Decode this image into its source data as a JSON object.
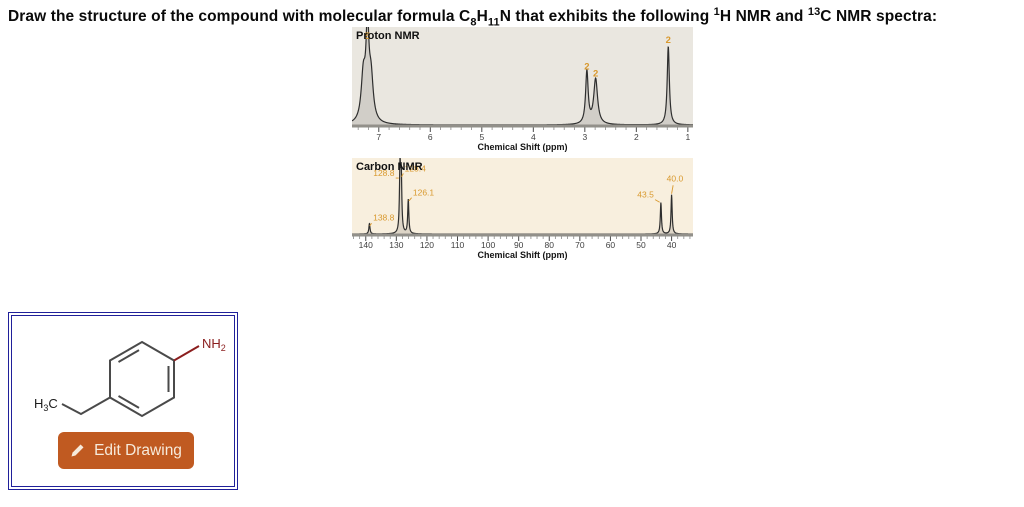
{
  "title": {
    "p1": "Draw the structure of the compound with molecular formula C",
    "s1": "8",
    "p2": "H",
    "s2": "11",
    "p3": "N that exhibits the following ",
    "sup1": "1",
    "p4": "H NMR and ",
    "sup2": "13",
    "p5": "C NMR spectra:"
  },
  "colors": {
    "proton_bg": "#eae7e0",
    "carbon_bg": "#f8efde",
    "curve": "#2e2e2e",
    "baseline": "#92908a",
    "tick": "#4a4a4a",
    "tick_label": "#3f3f3f",
    "annotation_orange": "#d9992e",
    "bond": "#4a4a4a",
    "amine_red": "#8b1e1e",
    "button_bg": "#c05a21",
    "button_text": "#f6eadb",
    "panel_border": "#20209a"
  },
  "chart_data": [
    {
      "type": "line",
      "name": "proton-nmr",
      "title": "Proton NMR",
      "xlabel": "Chemical Shift (ppm)",
      "x_domain": [
        7.52,
        0.9
      ],
      "x_axis": {
        "ticks": [
          7,
          6,
          5,
          4,
          3,
          2,
          1
        ],
        "minor_step": 0.2,
        "reversed": true
      },
      "peaks": [
        {
          "ppm": 7.3,
          "height": 0.52,
          "width": 0.05
        },
        {
          "ppm": 7.22,
          "height": 1.0,
          "width": 0.035
        },
        {
          "ppm": 7.15,
          "height": 0.48,
          "width": 0.05
        },
        {
          "ppm": 2.96,
          "height": 0.6,
          "width": 0.03
        },
        {
          "ppm": 2.79,
          "height": 0.52,
          "width": 0.045
        },
        {
          "ppm": 1.38,
          "height": 0.9,
          "width": 0.025
        }
      ],
      "integrations": [
        {
          "text": "5",
          "ppm": 7.22
        },
        {
          "text": "2",
          "ppm": 2.96
        },
        {
          "text": "2",
          "ppm": 2.79
        },
        {
          "text": "2",
          "ppm": 1.38
        }
      ],
      "annotations": [
        {
          "text": "5",
          "tx": 7.22,
          "ty": 1.0,
          "anchor": "middle",
          "bold": true
        },
        {
          "text": "2",
          "tx": 2.96,
          "ty": 0.65,
          "anchor": "middle",
          "bold": true
        },
        {
          "text": "2",
          "tx": 2.79,
          "ty": 0.57,
          "anchor": "middle",
          "bold": true
        },
        {
          "text": "2",
          "tx": 1.38,
          "ty": 0.95,
          "anchor": "middle",
          "bold": true
        }
      ]
    },
    {
      "type": "line",
      "name": "carbon-nmr",
      "title": "Carbon NMR",
      "xlabel": "Chemical Shift (ppm)",
      "x_domain": [
        144.5,
        33.0
      ],
      "x_axis": {
        "ticks": [
          140,
          130,
          120,
          110,
          100,
          90,
          80,
          70,
          60,
          50,
          40
        ],
        "minor_step": 2,
        "reversed": true
      },
      "peaks": [
        {
          "ppm": 138.8,
          "height": 0.16,
          "width": 0.22
        },
        {
          "ppm": 128.8,
          "height": 0.97,
          "width": 0.22
        },
        {
          "ppm": 128.4,
          "height": 0.86,
          "width": 0.22
        },
        {
          "ppm": 126.1,
          "height": 0.52,
          "width": 0.22
        },
        {
          "ppm": 43.5,
          "height": 0.48,
          "width": 0.22
        },
        {
          "ppm": 40.0,
          "height": 0.6,
          "width": 0.22
        }
      ],
      "shift_labels": [
        "138.8",
        "128.8",
        "128.4",
        "126.1",
        "43.5",
        "40.0"
      ],
      "annotations": [
        {
          "text": "138.8",
          "tx": 137.6,
          "ty": 0.22,
          "anchor": "start",
          "leader": [
            138.1,
            0.18,
            138.7,
            0.14
          ]
        },
        {
          "text": "128.8",
          "tx": 130.6,
          "ty": 0.9,
          "anchor": "end",
          "leader": [
            130.2,
            0.87,
            129.2,
            0.87
          ]
        },
        {
          "text": "128.4",
          "tx": 127.3,
          "ty": 0.97,
          "anchor": "start",
          "leader": [
            127.7,
            0.94,
            128.3,
            0.89
          ]
        },
        {
          "text": "126.1",
          "tx": 124.6,
          "ty": 0.6,
          "anchor": "start",
          "leader": [
            125.0,
            0.57,
            125.9,
            0.52
          ]
        },
        {
          "text": "43.5",
          "tx": 45.8,
          "ty": 0.57,
          "anchor": "end",
          "leader": [
            45.4,
            0.54,
            43.9,
            0.5
          ]
        },
        {
          "text": "40.0",
          "tx": 38.9,
          "ty": 0.82,
          "anchor": "middle",
          "leader": [
            39.5,
            0.76,
            40.0,
            0.63
          ]
        }
      ]
    }
  ],
  "structure": {
    "amine_main": "NH",
    "amine_sub": "2",
    "methyl_h": "H",
    "methyl_sub": "3",
    "methyl_c": "C"
  },
  "edit_button": {
    "label": "Edit Drawing",
    "icon": "pencil-icon"
  }
}
